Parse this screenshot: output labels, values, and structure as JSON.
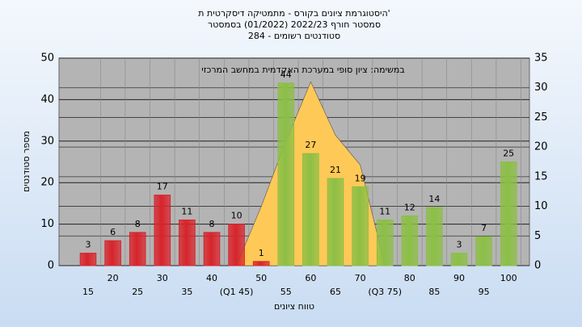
{
  "chart_data": {
    "type": "bar",
    "title": [
      "היסטוגרמת ציונים בקורס - מתמטיקה דיסקרטית ת'",
      "סמסטר חורף 2022/23  (01/2022)  בסמסטר",
      "סטודנטים רשומים - 284"
    ],
    "annotation": "במשימה: ציון סופי במערכת האקדמית במחשב המרכזי",
    "xlabel": "טווח ציונים",
    "ylabel": "מספר סטודנטים",
    "categories": [
      "15",
      "20",
      "25",
      "30",
      "35",
      "40",
      "(Q1 45)",
      "50",
      "55",
      "60",
      "65",
      "70",
      "(Q3 75)",
      "80",
      "85",
      "90",
      "95",
      "100"
    ],
    "series": [
      {
        "type": "bar",
        "values": [
          3,
          6,
          8,
          17,
          11,
          8,
          10,
          1,
          44,
          27,
          21,
          19,
          11,
          12,
          14,
          3,
          7,
          25
        ],
        "colors": [
          "#d8232a",
          "#d8232a",
          "#d8232a",
          "#d8232a",
          "#d8232a",
          "#d8232a",
          "#d8232a",
          "#d8232a",
          "#8cbf45",
          "#8cbf45",
          "#8cbf45",
          "#8cbf45",
          "#8cbf45",
          "#8cbf45",
          "#8cbf45",
          "#8cbf45",
          "#8cbf45",
          "#8cbf45"
        ]
      },
      {
        "type": "area",
        "axis": "y2",
        "color": "#ffc957",
        "values": [
          null,
          null,
          null,
          null,
          null,
          null,
          0,
          10,
          21,
          31,
          22,
          17,
          0,
          null,
          null,
          null,
          null,
          null
        ]
      }
    ],
    "ylim": [
      0,
      50
    ],
    "yticks": [
      0,
      10,
      20,
      30,
      40,
      50
    ],
    "y2lim": [
      0,
      35
    ],
    "y2ticks": [
      0,
      5,
      10,
      15,
      20,
      25,
      30,
      35
    ],
    "grid": true
  }
}
